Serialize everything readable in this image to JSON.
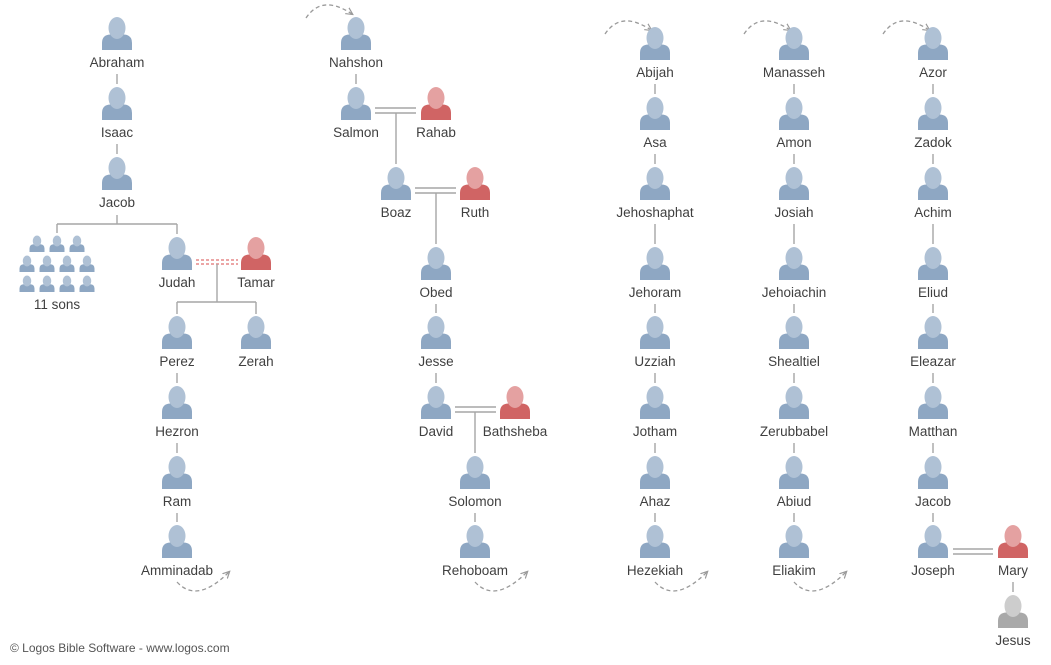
{
  "colors": {
    "man": "#8ea7c3",
    "man_head": "#afc1d5",
    "woman": "#d06464",
    "woman_head": "#e4a1a1",
    "jesus": "#a9a9a9",
    "jesus_head": "#cdcdcd",
    "line": "#a6a6a6",
    "uncertain_link": "#e07070",
    "label": "#3f3f3f"
  },
  "persons": {
    "abraham": {
      "name": "Abraham",
      "gender": "male"
    },
    "isaac": {
      "name": "Isaac",
      "gender": "male"
    },
    "jacob1": {
      "name": "Jacob",
      "gender": "male"
    },
    "sons": {
      "name": "11 sons",
      "gender": "group"
    },
    "judah": {
      "name": "Judah",
      "gender": "male"
    },
    "tamar": {
      "name": "Tamar",
      "gender": "female"
    },
    "perez": {
      "name": "Perez",
      "gender": "male"
    },
    "zerah": {
      "name": "Zerah",
      "gender": "male"
    },
    "hezron": {
      "name": "Hezron",
      "gender": "male"
    },
    "ram": {
      "name": "Ram",
      "gender": "male"
    },
    "amminadab": {
      "name": "Amminadab",
      "gender": "male"
    },
    "nahshon": {
      "name": "Nahshon",
      "gender": "male"
    },
    "salmon": {
      "name": "Salmon",
      "gender": "male"
    },
    "rahab": {
      "name": "Rahab",
      "gender": "female"
    },
    "boaz": {
      "name": "Boaz",
      "gender": "male"
    },
    "ruth": {
      "name": "Ruth",
      "gender": "female"
    },
    "obed": {
      "name": "Obed",
      "gender": "male"
    },
    "jesse": {
      "name": "Jesse",
      "gender": "male"
    },
    "david": {
      "name": "David",
      "gender": "male"
    },
    "bathsheba": {
      "name": "Bathsheba",
      "gender": "female"
    },
    "solomon": {
      "name": "Solomon",
      "gender": "male"
    },
    "rehoboam": {
      "name": "Rehoboam",
      "gender": "male"
    },
    "abijah": {
      "name": "Abijah",
      "gender": "male"
    },
    "asa": {
      "name": "Asa",
      "gender": "male"
    },
    "jehoshaphat": {
      "name": "Jehoshaphat",
      "gender": "male"
    },
    "jehoram": {
      "name": "Jehoram",
      "gender": "male"
    },
    "uzziah": {
      "name": "Uzziah",
      "gender": "male"
    },
    "jotham": {
      "name": "Jotham",
      "gender": "male"
    },
    "ahaz": {
      "name": "Ahaz",
      "gender": "male"
    },
    "hezekiah": {
      "name": "Hezekiah",
      "gender": "male"
    },
    "manasseh": {
      "name": "Manasseh",
      "gender": "male"
    },
    "amon": {
      "name": "Amon",
      "gender": "male"
    },
    "josiah": {
      "name": "Josiah",
      "gender": "male"
    },
    "jehoiachin": {
      "name": "Jehoiachin",
      "gender": "male"
    },
    "shealtiel": {
      "name": "Shealtiel",
      "gender": "male"
    },
    "zerubbabel": {
      "name": "Zerubbabel",
      "gender": "male"
    },
    "abiud": {
      "name": "Abiud",
      "gender": "male"
    },
    "eliakim": {
      "name": "Eliakim",
      "gender": "male"
    },
    "azor": {
      "name": "Azor",
      "gender": "male"
    },
    "zadok": {
      "name": "Zadok",
      "gender": "male"
    },
    "achim": {
      "name": "Achim",
      "gender": "male"
    },
    "eliud": {
      "name": "Eliud",
      "gender": "male"
    },
    "eleazar": {
      "name": "Eleazar",
      "gender": "male"
    },
    "matthan": {
      "name": "Matthan",
      "gender": "male"
    },
    "jacob2": {
      "name": "Jacob",
      "gender": "male"
    },
    "joseph": {
      "name": "Joseph",
      "gender": "male"
    },
    "mary": {
      "name": "Mary",
      "gender": "female"
    },
    "jesus": {
      "name": "Jesus",
      "gender": "jesus"
    }
  },
  "relations": {
    "parent_child": [
      [
        "abraham",
        "isaac"
      ],
      [
        "isaac",
        "jacob1"
      ],
      [
        "jacob1",
        "sons"
      ],
      [
        "jacob1",
        "judah"
      ],
      [
        "judah",
        "perez"
      ],
      [
        "judah",
        "zerah"
      ],
      [
        "perez",
        "hezron"
      ],
      [
        "hezron",
        "ram"
      ],
      [
        "ram",
        "amminadab"
      ],
      [
        "amminadab",
        "nahshon"
      ],
      [
        "nahshon",
        "salmon"
      ],
      [
        "salmon",
        "boaz"
      ],
      [
        "boaz",
        "obed"
      ],
      [
        "obed",
        "jesse"
      ],
      [
        "jesse",
        "david"
      ],
      [
        "david",
        "solomon"
      ],
      [
        "solomon",
        "rehoboam"
      ],
      [
        "rehoboam",
        "abijah"
      ],
      [
        "abijah",
        "asa"
      ],
      [
        "asa",
        "jehoshaphat"
      ],
      [
        "jehoshaphat",
        "jehoram"
      ],
      [
        "jehoram",
        "uzziah"
      ],
      [
        "uzziah",
        "jotham"
      ],
      [
        "jotham",
        "ahaz"
      ],
      [
        "ahaz",
        "hezekiah"
      ],
      [
        "hezekiah",
        "manasseh"
      ],
      [
        "manasseh",
        "amon"
      ],
      [
        "amon",
        "josiah"
      ],
      [
        "josiah",
        "jehoiachin"
      ],
      [
        "jehoiachin",
        "shealtiel"
      ],
      [
        "shealtiel",
        "zerubbabel"
      ],
      [
        "zerubbabel",
        "abiud"
      ],
      [
        "abiud",
        "eliakim"
      ],
      [
        "eliakim",
        "azor"
      ],
      [
        "azor",
        "zadok"
      ],
      [
        "zadok",
        "achim"
      ],
      [
        "achim",
        "eliud"
      ],
      [
        "eliud",
        "eleazar"
      ],
      [
        "eleazar",
        "matthan"
      ],
      [
        "matthan",
        "jacob2"
      ],
      [
        "jacob2",
        "joseph"
      ],
      [
        "mary",
        "jesus"
      ]
    ],
    "unions": [
      {
        "a": "judah",
        "b": "tamar",
        "style": "irregular"
      },
      {
        "a": "salmon",
        "b": "rahab",
        "style": "marriage"
      },
      {
        "a": "boaz",
        "b": "ruth",
        "style": "marriage"
      },
      {
        "a": "david",
        "b": "bathsheba",
        "style": "marriage"
      },
      {
        "a": "joseph",
        "b": "mary",
        "style": "marriage"
      }
    ],
    "column_continuations": [
      [
        "amminadab",
        "nahshon"
      ],
      [
        "rehoboam",
        "abijah"
      ],
      [
        "hezekiah",
        "manasseh"
      ],
      [
        "eliakim",
        "azor"
      ]
    ]
  },
  "footer": {
    "credit": "© Logos Bible Software - www.logos.com"
  }
}
